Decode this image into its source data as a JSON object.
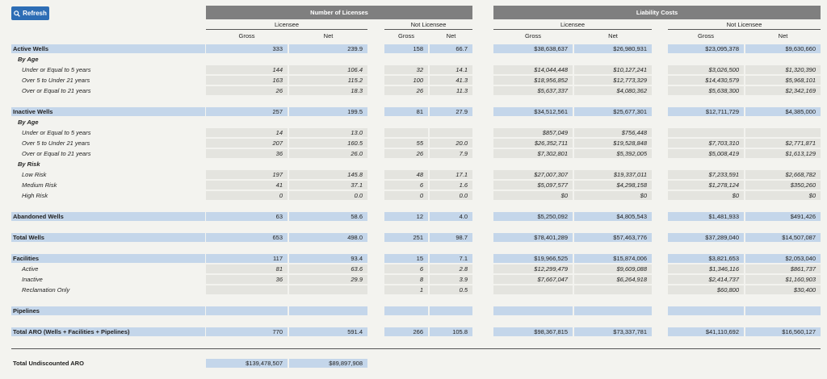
{
  "toolbar": {
    "refresh_label": "Refresh",
    "refresh_icon": "search-icon"
  },
  "headers": {
    "licenses": "Number of Licenses",
    "liability": "Liability Costs",
    "licensee": "Licensee",
    "not_licensee": "Not Licensee",
    "gross": "Gross",
    "net": "Net"
  },
  "rows": [
    {
      "label": "Active Wells",
      "type": "hl",
      "values": [
        "333",
        "239.9",
        "158",
        "66.7",
        "$38,638,637",
        "$26,980,931",
        "$23,095,378",
        "$9,630,660"
      ]
    },
    {
      "label": "By Age",
      "type": "sub"
    },
    {
      "label": "Under or Equal to 5 years",
      "type": "item",
      "values": [
        "144",
        "106.4",
        "32",
        "14.1",
        "$14,044,448",
        "$10,127,241",
        "$3,026,500",
        "$1,320,390"
      ]
    },
    {
      "label": "Over 5 to Under 21 years",
      "type": "item",
      "values": [
        "163",
        "115.2",
        "100",
        "41.3",
        "$18,956,852",
        "$12,773,329",
        "$14,430,579",
        "$5,968,101"
      ]
    },
    {
      "label": "Over or Equal to 21 years",
      "type": "item",
      "values": [
        "26",
        "18.3",
        "26",
        "11.3",
        "$5,637,337",
        "$4,080,362",
        "$5,638,300",
        "$2,342,169"
      ]
    },
    {
      "type": "gap"
    },
    {
      "label": "Inactive Wells",
      "type": "hl",
      "values": [
        "257",
        "199.5",
        "81",
        "27.9",
        "$34,512,561",
        "$25,677,301",
        "$12,711,729",
        "$4,385,000"
      ]
    },
    {
      "label": "By Age",
      "type": "sub"
    },
    {
      "label": "Under or Equal to 5 years",
      "type": "item",
      "values": [
        "14",
        "13.0",
        "",
        "",
        "$857,049",
        "$756,448",
        "",
        ""
      ]
    },
    {
      "label": "Over 5 to Under 21 years",
      "type": "item",
      "values": [
        "207",
        "160.5",
        "55",
        "20.0",
        "$26,352,711",
        "$19,528,848",
        "$7,703,310",
        "$2,771,871"
      ]
    },
    {
      "label": "Over or Equal to 21 years",
      "type": "item",
      "values": [
        "36",
        "26.0",
        "26",
        "7.9",
        "$7,302,801",
        "$5,392,005",
        "$5,008,419",
        "$1,613,129"
      ]
    },
    {
      "label": "By Risk",
      "type": "sub"
    },
    {
      "label": "Low Risk",
      "type": "item",
      "values": [
        "197",
        "145.8",
        "48",
        "17.1",
        "$27,007,307",
        "$19,337,011",
        "$7,233,591",
        "$2,668,782"
      ]
    },
    {
      "label": "Medium Risk",
      "type": "item",
      "values": [
        "41",
        "37.1",
        "6",
        "1.6",
        "$5,097,577",
        "$4,298,158",
        "$1,278,124",
        "$350,260"
      ]
    },
    {
      "label": "High Risk",
      "type": "item",
      "values": [
        "0",
        "0.0",
        "0",
        "0.0",
        "$0",
        "$0",
        "$0",
        "$0"
      ]
    },
    {
      "type": "gap"
    },
    {
      "label": "Abandoned Wells",
      "type": "hl",
      "values": [
        "63",
        "58.6",
        "12",
        "4.0",
        "$5,250,092",
        "$4,805,543",
        "$1,481,933",
        "$491,426"
      ]
    },
    {
      "type": "gap"
    },
    {
      "label": "Total Wells",
      "type": "hl",
      "values": [
        "653",
        "498.0",
        "251",
        "98.7",
        "$78,401,289",
        "$57,463,776",
        "$37,289,040",
        "$14,507,087"
      ]
    },
    {
      "type": "gap"
    },
    {
      "label": "Facilities",
      "type": "hl",
      "values": [
        "117",
        "93.4",
        "15",
        "7.1",
        "$19,966,525",
        "$15,874,006",
        "$3,821,653",
        "$2,053,040"
      ]
    },
    {
      "label": "Active",
      "type": "item",
      "values": [
        "81",
        "63.6",
        "6",
        "2.8",
        "$12,299,479",
        "$9,609,088",
        "$1,346,116",
        "$861,737"
      ]
    },
    {
      "label": "Inactive",
      "type": "item",
      "values": [
        "36",
        "29.9",
        "8",
        "3.9",
        "$7,667,047",
        "$6,264,918",
        "$2,414,737",
        "$1,160,903"
      ]
    },
    {
      "label": "Reclamation Only",
      "type": "item",
      "values": [
        "",
        "",
        "1",
        "0.5",
        "",
        "",
        "$60,800",
        "$30,400"
      ]
    },
    {
      "type": "gap"
    },
    {
      "label": "Pipelines",
      "type": "hl",
      "values": [
        "",
        "",
        "",
        "",
        "",
        "",
        "",
        ""
      ]
    },
    {
      "type": "gap"
    },
    {
      "label": "Total ARO (Wells + Facilities + Pipelines)",
      "type": "hl",
      "values": [
        "770",
        "591.4",
        "266",
        "105.8",
        "$98,367,815",
        "$73,337,781",
        "$41,110,692",
        "$16,560,127"
      ]
    }
  ],
  "undiscounted": {
    "label": "Total Undiscounted ARO",
    "values": [
      "$139,478,507",
      "$89,897,908"
    ]
  }
}
